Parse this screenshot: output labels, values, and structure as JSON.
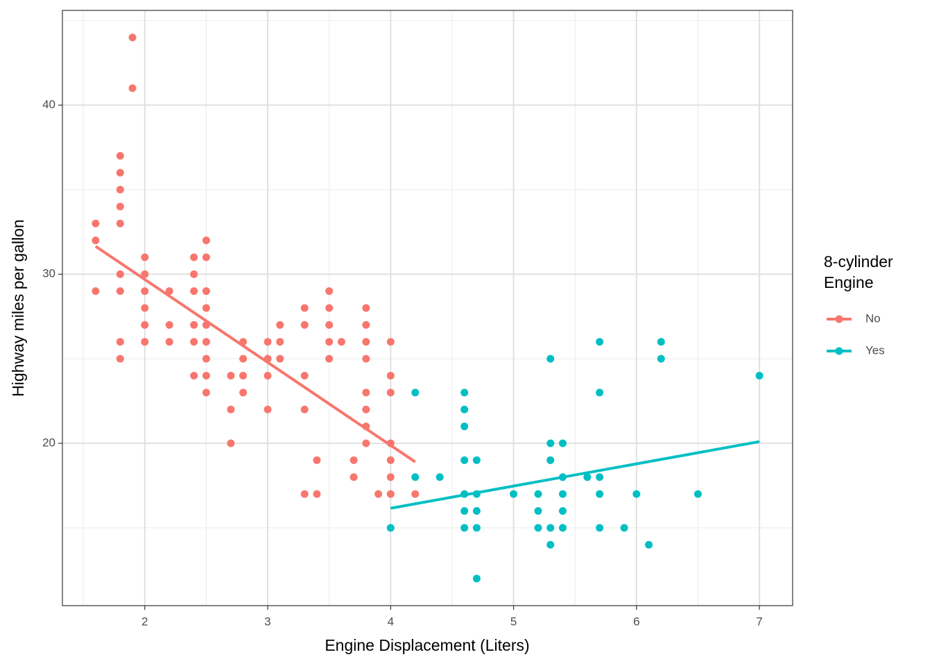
{
  "chart_data": {
    "type": "scatter",
    "x_label": "Engine Displacement (Liters)",
    "y_label": "Highway miles per gallon",
    "legend_title": [
      "8-cylinder",
      "Engine"
    ],
    "legend_position": "right",
    "grid": true,
    "xlim": [
      1.33,
      7.27
    ],
    "ylim": [
      10.4,
      45.6
    ],
    "xticks": [
      2,
      3,
      4,
      5,
      6,
      7
    ],
    "yticks": [
      20,
      30,
      40
    ],
    "xminor": [
      1.5,
      2.5,
      3.5,
      4.5,
      5.5,
      6.5
    ],
    "yminor": [
      15,
      25,
      35,
      45
    ],
    "series": [
      {
        "name": "No",
        "color": "#F8766D",
        "x": [
          1.6,
          1.6,
          1.6,
          1.8,
          1.8,
          1.8,
          1.8,
          1.8,
          1.8,
          1.8,
          1.8,
          1.8,
          1.9,
          1.9,
          2.0,
          2.0,
          2.0,
          2.0,
          2.0,
          2.0,
          2.2,
          2.2,
          2.2,
          2.4,
          2.4,
          2.4,
          2.4,
          2.4,
          2.4,
          2.5,
          2.5,
          2.5,
          2.5,
          2.5,
          2.5,
          2.5,
          2.5,
          2.5,
          2.7,
          2.7,
          2.7,
          2.8,
          2.8,
          2.8,
          2.8,
          3.0,
          3.0,
          3.0,
          3.0,
          3.1,
          3.1,
          3.1,
          3.3,
          3.3,
          3.3,
          3.3,
          3.3,
          3.4,
          3.4,
          3.5,
          3.5,
          3.5,
          3.5,
          3.5,
          3.6,
          3.7,
          3.7,
          3.8,
          3.8,
          3.8,
          3.8,
          3.8,
          3.8,
          3.8,
          3.8,
          3.9,
          4.0,
          4.0,
          4.0,
          4.0,
          4.0,
          4.0,
          4.0,
          4.2
        ],
        "values": [
          33,
          32,
          29,
          37,
          36,
          35,
          34,
          33,
          30,
          29,
          26,
          25,
          44,
          41,
          31,
          30,
          29,
          28,
          27,
          26,
          29,
          27,
          26,
          31,
          30,
          29,
          27,
          26,
          24,
          32,
          31,
          29,
          28,
          27,
          26,
          25,
          24,
          23,
          24,
          22,
          20,
          26,
          25,
          24,
          23,
          26,
          25,
          24,
          22,
          27,
          26,
          25,
          28,
          27,
          24,
          22,
          17,
          19,
          17,
          29,
          28,
          27,
          26,
          25,
          26,
          19,
          18,
          28,
          27,
          26,
          25,
          23,
          22,
          21,
          20,
          17,
          26,
          24,
          23,
          20,
          19,
          18,
          17,
          17
        ],
        "trend_x": [
          1.6,
          4.2
        ],
        "trend_values": [
          31.65,
          18.9
        ]
      },
      {
        "name": "Yes",
        "color": "#00BFC4",
        "x": [
          4.0,
          4.2,
          4.2,
          4.4,
          4.6,
          4.6,
          4.6,
          4.6,
          4.6,
          4.6,
          4.6,
          4.7,
          4.7,
          4.7,
          4.7,
          4.7,
          5.0,
          5.2,
          5.2,
          5.2,
          5.3,
          5.3,
          5.3,
          5.3,
          5.3,
          5.4,
          5.4,
          5.4,
          5.4,
          5.4,
          5.6,
          5.7,
          5.7,
          5.7,
          5.7,
          5.7,
          5.9,
          6.0,
          6.1,
          6.2,
          6.2,
          6.5,
          7.0
        ],
        "values": [
          15,
          23,
          18,
          18,
          23,
          22,
          21,
          19,
          17,
          16,
          15,
          19,
          17,
          16,
          15,
          12,
          17,
          17,
          16,
          15,
          25,
          20,
          19,
          15,
          14,
          20,
          18,
          17,
          16,
          15,
          18,
          26,
          23,
          18,
          17,
          15,
          15,
          17,
          14,
          26,
          25,
          17,
          24
        ],
        "trend_x": [
          4.0,
          7.0
        ],
        "trend_values": [
          16.16,
          20.1
        ]
      }
    ]
  }
}
